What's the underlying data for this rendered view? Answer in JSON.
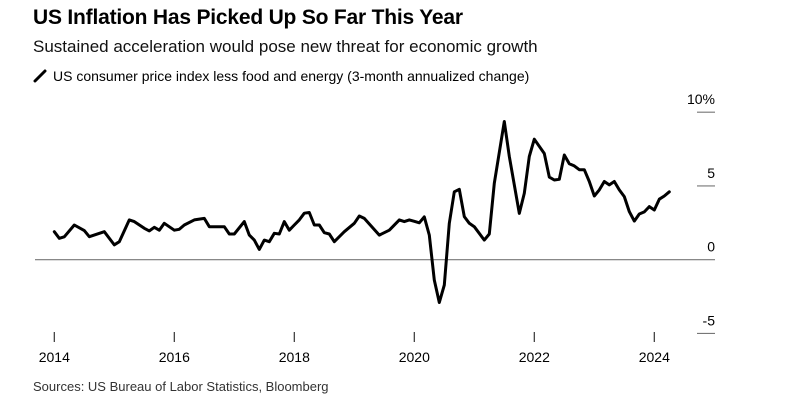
{
  "title": "US Inflation Has Picked Up So Far This Year",
  "subtitle": "Sustained acceleration would pose new threat for economic growth",
  "source": "Sources: US Bureau of Labor Statistics, Bloomberg",
  "chart_data": {
    "type": "line",
    "title": "US Inflation Has Picked Up So Far This Year",
    "subtitle": "Sustained acceleration would pose new threat for economic growth",
    "legend_position": "top-left",
    "series": [
      {
        "name": "US consumer price index less food and energy (3-month annualized change)",
        "color": "#000000",
        "points": [
          [
            "2014-01",
            1.9
          ],
          [
            "2014-02",
            1.45
          ],
          [
            "2014-03",
            1.55
          ],
          [
            "2014-05",
            2.35
          ],
          [
            "2014-07",
            1.97
          ],
          [
            "2014-08",
            1.56
          ],
          [
            "2014-11",
            1.9
          ],
          [
            "2015-01",
            1.0
          ],
          [
            "2015-02",
            1.22
          ],
          [
            "2015-04",
            2.7
          ],
          [
            "2015-05",
            2.58
          ],
          [
            "2015-07",
            2.13
          ],
          [
            "2015-08",
            1.95
          ],
          [
            "2015-09",
            2.2
          ],
          [
            "2015-10",
            2.0
          ],
          [
            "2015-11",
            2.47
          ],
          [
            "2016-01",
            2.0
          ],
          [
            "2016-02",
            2.06
          ],
          [
            "2016-03",
            2.35
          ],
          [
            "2016-05",
            2.7
          ],
          [
            "2016-07",
            2.8
          ],
          [
            "2016-08",
            2.24
          ],
          [
            "2016-11",
            2.24
          ],
          [
            "2016-12",
            1.74
          ],
          [
            "2017-01",
            1.74
          ],
          [
            "2017-03",
            2.58
          ],
          [
            "2017-04",
            1.67
          ],
          [
            "2017-05",
            1.33
          ],
          [
            "2017-06",
            0.7
          ],
          [
            "2017-07",
            1.33
          ],
          [
            "2017-08",
            1.22
          ],
          [
            "2017-09",
            1.79
          ],
          [
            "2017-10",
            1.74
          ],
          [
            "2017-11",
            2.58
          ],
          [
            "2017-12",
            2.0
          ],
          [
            "2018-01",
            2.35
          ],
          [
            "2018-02",
            2.7
          ],
          [
            "2018-03",
            3.15
          ],
          [
            "2018-04",
            3.2
          ],
          [
            "2018-05",
            2.35
          ],
          [
            "2018-06",
            2.35
          ],
          [
            "2018-07",
            1.83
          ],
          [
            "2018-08",
            1.74
          ],
          [
            "2018-09",
            1.22
          ],
          [
            "2018-11",
            1.9
          ],
          [
            "2019-01",
            2.47
          ],
          [
            "2019-02",
            2.96
          ],
          [
            "2019-03",
            2.8
          ],
          [
            "2019-06",
            1.67
          ],
          [
            "2019-08",
            2.0
          ],
          [
            "2019-10",
            2.7
          ],
          [
            "2019-11",
            2.58
          ],
          [
            "2019-12",
            2.7
          ],
          [
            "2020-01",
            2.6
          ],
          [
            "2020-02",
            2.5
          ],
          [
            "2020-03",
            2.9
          ],
          [
            "2020-04",
            1.67
          ],
          [
            "2020-05",
            -1.38
          ],
          [
            "2020-06",
            -2.9
          ],
          [
            "2020-07",
            -1.72
          ],
          [
            "2020-08",
            2.47
          ],
          [
            "2020-09",
            4.6
          ],
          [
            "2020-10",
            4.77
          ],
          [
            "2020-11",
            2.92
          ],
          [
            "2020-12",
            2.47
          ],
          [
            "2021-01",
            2.24
          ],
          [
            "2021-03",
            1.33
          ],
          [
            "2021-04",
            1.74
          ],
          [
            "2021-05",
            5.18
          ],
          [
            "2021-07",
            9.37
          ],
          [
            "2021-08",
            7.0
          ],
          [
            "2021-10",
            3.14
          ],
          [
            "2021-11",
            4.5
          ],
          [
            "2021-12",
            7.0
          ],
          [
            "2022-01",
            8.17
          ],
          [
            "2022-03",
            7.2
          ],
          [
            "2022-04",
            5.6
          ],
          [
            "2022-05",
            5.4
          ],
          [
            "2022-06",
            5.45
          ],
          [
            "2022-07",
            7.1
          ],
          [
            "2022-08",
            6.5
          ],
          [
            "2022-09",
            6.36
          ],
          [
            "2022-10",
            6.1
          ],
          [
            "2022-11",
            6.1
          ],
          [
            "2022-12",
            5.3
          ],
          [
            "2023-01",
            4.32
          ],
          [
            "2023-02",
            4.73
          ],
          [
            "2023-03",
            5.3
          ],
          [
            "2023-04",
            5.07
          ],
          [
            "2023-05",
            5.3
          ],
          [
            "2023-06",
            4.73
          ],
          [
            "2023-07",
            4.28
          ],
          [
            "2023-08",
            3.26
          ],
          [
            "2023-09",
            2.62
          ],
          [
            "2023-10",
            3.1
          ],
          [
            "2023-11",
            3.24
          ],
          [
            "2023-12",
            3.6
          ],
          [
            "2024-01",
            3.37
          ],
          [
            "2024-02",
            4.1
          ],
          [
            "2024-03",
            4.32
          ],
          [
            "2024-04",
            4.6
          ]
        ]
      }
    ],
    "x_ticks": [
      "2014",
      "2016",
      "2018",
      "2020",
      "2022",
      "2024"
    ],
    "y_ticks": [
      {
        "value": 10,
        "label": "10%"
      },
      {
        "value": 5,
        "label": "5"
      },
      {
        "value": 0,
        "label": "0"
      },
      {
        "value": -5,
        "label": "-5"
      }
    ],
    "ylim": [
      -5,
      10
    ],
    "y_axis_side": "right",
    "grid": false
  }
}
